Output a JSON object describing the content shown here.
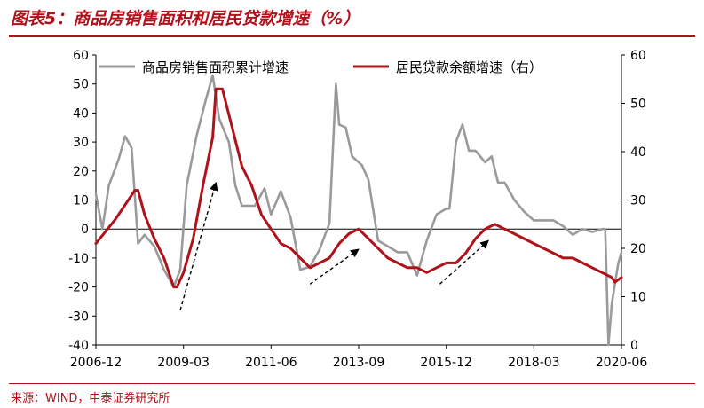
{
  "header": {
    "title": "图表5：商品房销售面积和居民贷款增速（%）"
  },
  "footer": {
    "source": "来源：WIND，中泰证券研究所"
  },
  "chart_data": {
    "type": "line",
    "xlabel": "",
    "ylabel": "",
    "x_ticks": [
      "2006-12",
      "2009-03",
      "2011-06",
      "2013-09",
      "2015-12",
      "2018-03",
      "2020-06"
    ],
    "left_axis": {
      "ticks": [
        60,
        50,
        40,
        30,
        20,
        10,
        0,
        -10,
        -20,
        -30,
        -40
      ],
      "ylim": [
        -40,
        60
      ]
    },
    "right_axis": {
      "ticks": [
        60,
        50,
        40,
        30,
        20,
        10,
        0
      ],
      "ylim": [
        0,
        60
      ]
    },
    "grid": false,
    "legend_position": "top",
    "series": [
      {
        "name": "商品房销售面积累计增速",
        "axis": "left",
        "color": "#9a9a9a",
        "points": [
          [
            "2006-12",
            12
          ],
          [
            "2007-02",
            0
          ],
          [
            "2007-04",
            15
          ],
          [
            "2007-07",
            24
          ],
          [
            "2007-09",
            32
          ],
          [
            "2007-11",
            28
          ],
          [
            "2008-01",
            -5
          ],
          [
            "2008-03",
            -2
          ],
          [
            "2008-06",
            -6
          ],
          [
            "2008-09",
            -14
          ],
          [
            "2008-12",
            -20
          ],
          [
            "2009-02",
            -14
          ],
          [
            "2009-04",
            15
          ],
          [
            "2009-07",
            32
          ],
          [
            "2009-10",
            45
          ],
          [
            "2009-12",
            53
          ],
          [
            "2010-02",
            38
          ],
          [
            "2010-05",
            30
          ],
          [
            "2010-07",
            15
          ],
          [
            "2010-09",
            8
          ],
          [
            "2011-01",
            8
          ],
          [
            "2011-04",
            14
          ],
          [
            "2011-06",
            5
          ],
          [
            "2011-09",
            13
          ],
          [
            "2011-12",
            4
          ],
          [
            "2012-03",
            -14
          ],
          [
            "2012-06",
            -13
          ],
          [
            "2012-09",
            -7
          ],
          [
            "2012-12",
            2
          ],
          [
            "2013-02",
            50
          ],
          [
            "2013-03",
            36
          ],
          [
            "2013-05",
            35
          ],
          [
            "2013-07",
            25
          ],
          [
            "2013-10",
            22
          ],
          [
            "2013-12",
            17
          ],
          [
            "2014-03",
            -4
          ],
          [
            "2014-06",
            -6
          ],
          [
            "2014-09",
            -8
          ],
          [
            "2014-12",
            -8
          ],
          [
            "2015-03",
            -16
          ],
          [
            "2015-06",
            -4
          ],
          [
            "2015-09",
            5
          ],
          [
            "2015-12",
            7
          ],
          [
            "2016-01",
            7
          ],
          [
            "2016-03",
            30
          ],
          [
            "2016-05",
            36
          ],
          [
            "2016-07",
            27
          ],
          [
            "2016-09",
            27
          ],
          [
            "2016-12",
            23
          ],
          [
            "2017-02",
            25
          ],
          [
            "2017-04",
            16
          ],
          [
            "2017-06",
            16
          ],
          [
            "2017-09",
            10
          ],
          [
            "2017-12",
            6
          ],
          [
            "2018-03",
            3
          ],
          [
            "2018-06",
            3
          ],
          [
            "2018-09",
            3
          ],
          [
            "2018-12",
            1
          ],
          [
            "2019-03",
            -2
          ],
          [
            "2019-06",
            0
          ],
          [
            "2019-09",
            -1
          ],
          [
            "2019-12",
            0
          ],
          [
            "2020-01",
            0
          ],
          [
            "2020-02",
            -40
          ],
          [
            "2020-03",
            -26
          ],
          [
            "2020-05",
            -12
          ],
          [
            "2020-06",
            -8
          ]
        ]
      },
      {
        "name": "居民贷款余额增速（右）",
        "axis": "right",
        "color": "#b0121b",
        "points": [
          [
            "2006-12",
            21
          ],
          [
            "2007-06",
            26
          ],
          [
            "2007-12",
            32
          ],
          [
            "2008-01",
            32
          ],
          [
            "2008-03",
            27
          ],
          [
            "2008-06",
            22
          ],
          [
            "2008-09",
            18
          ],
          [
            "2008-12",
            12
          ],
          [
            "2009-01",
            12
          ],
          [
            "2009-03",
            15
          ],
          [
            "2009-06",
            22
          ],
          [
            "2009-09",
            33
          ],
          [
            "2009-12",
            43
          ],
          [
            "2010-01",
            53
          ],
          [
            "2010-03",
            53
          ],
          [
            "2010-06",
            45
          ],
          [
            "2010-09",
            37
          ],
          [
            "2010-12",
            33
          ],
          [
            "2011-03",
            27
          ],
          [
            "2011-06",
            24
          ],
          [
            "2011-09",
            21
          ],
          [
            "2011-12",
            20
          ],
          [
            "2012-03",
            18
          ],
          [
            "2012-06",
            16
          ],
          [
            "2012-09",
            17
          ],
          [
            "2012-12",
            18
          ],
          [
            "2013-03",
            21
          ],
          [
            "2013-06",
            23
          ],
          [
            "2013-09",
            24
          ],
          [
            "2013-12",
            22
          ],
          [
            "2014-03",
            20
          ],
          [
            "2014-06",
            18
          ],
          [
            "2014-09",
            17
          ],
          [
            "2014-12",
            16
          ],
          [
            "2015-03",
            16
          ],
          [
            "2015-06",
            15
          ],
          [
            "2015-09",
            16
          ],
          [
            "2015-12",
            17
          ],
          [
            "2016-03",
            17
          ],
          [
            "2016-06",
            19
          ],
          [
            "2016-09",
            22
          ],
          [
            "2016-12",
            24
          ],
          [
            "2017-03",
            25
          ],
          [
            "2017-06",
            24
          ],
          [
            "2017-09",
            23
          ],
          [
            "2017-12",
            22
          ],
          [
            "2018-03",
            21
          ],
          [
            "2018-06",
            20
          ],
          [
            "2018-09",
            19
          ],
          [
            "2018-12",
            18
          ],
          [
            "2019-03",
            18
          ],
          [
            "2019-06",
            17
          ],
          [
            "2019-09",
            16
          ],
          [
            "2019-12",
            15
          ],
          [
            "2020-03",
            14
          ],
          [
            "2020-04",
            13
          ],
          [
            "2020-06",
            14
          ]
        ]
      }
    ],
    "annotations": [
      {
        "type": "arrow",
        "from": [
          "2009-02",
          -28
        ],
        "to": [
          "2010-01",
          16
        ]
      },
      {
        "type": "arrow",
        "from": [
          "2012-06",
          -19
        ],
        "to": [
          "2013-09",
          -7
        ]
      },
      {
        "type": "arrow",
        "from": [
          "2015-10",
          -19
        ],
        "to": [
          "2017-01",
          -4
        ]
      }
    ]
  }
}
